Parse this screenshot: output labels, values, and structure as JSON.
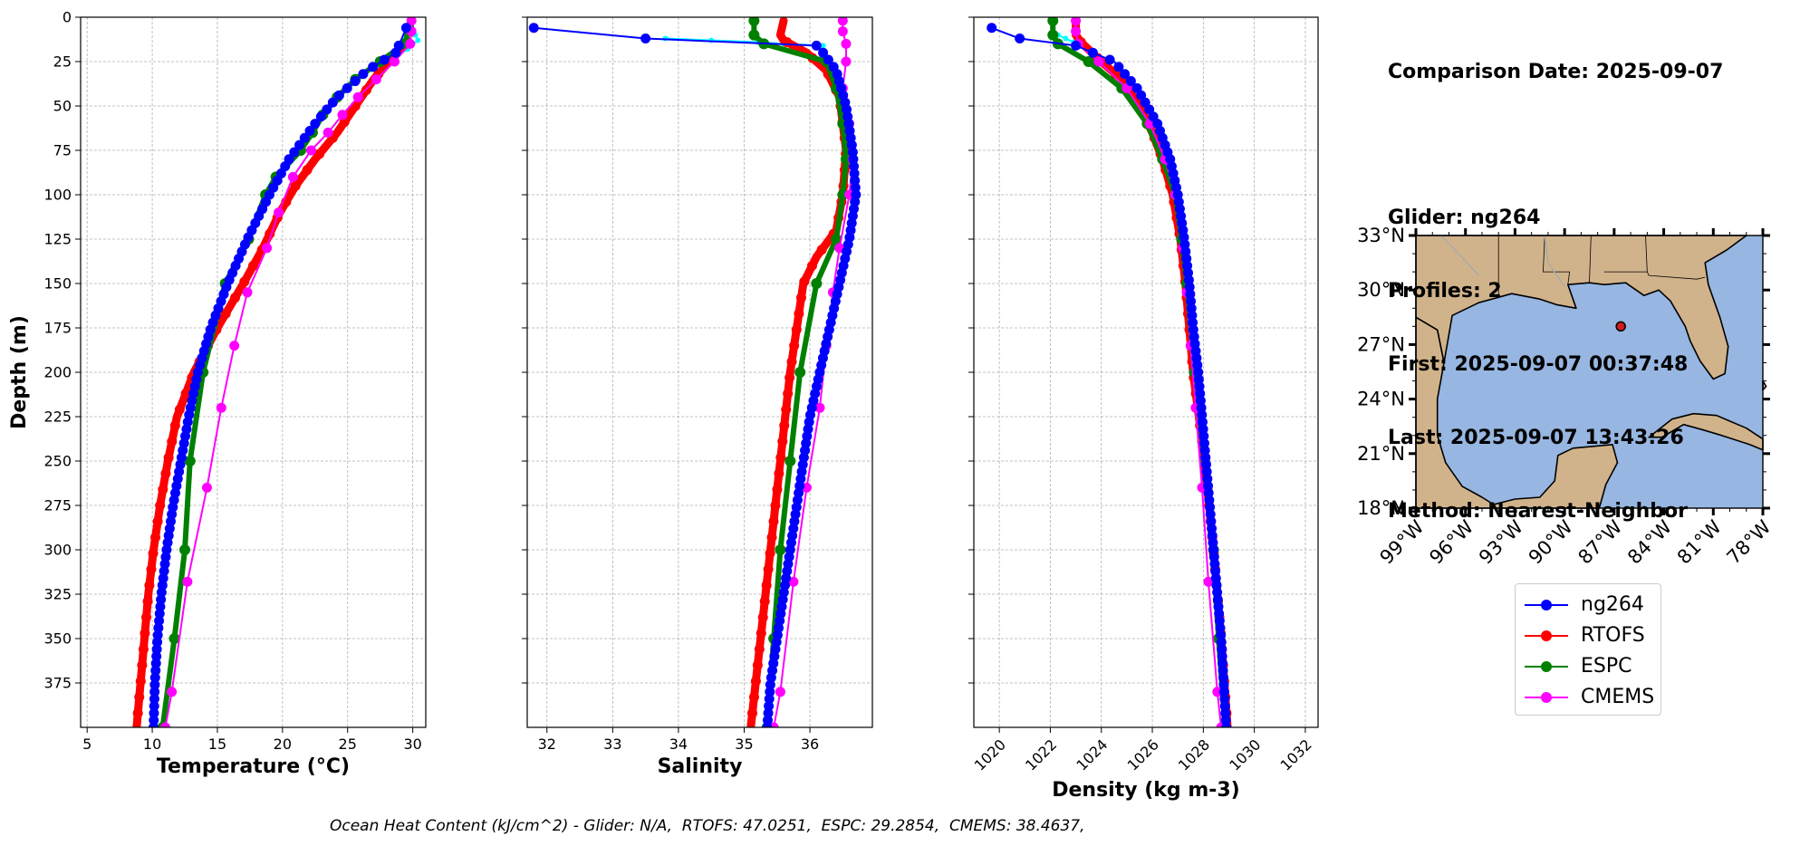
{
  "info": {
    "comparison_date": "Comparison Date: 2025-09-07",
    "glider": "Glider: ng264",
    "profiles": "Profiles: 2",
    "first": "First: 2025-09-07 00:37:48",
    "last": "Last: 2025-09-07 13:43:26",
    "method": "Method: Nearest-Neighbor"
  },
  "footer": "Ocean Heat Content (kJ/cm^2) - Glider: N/A,  RTOFS: 47.0251,  ESPC: 29.2854,  CMEMS: 38.4637,",
  "colors": {
    "ng264": "#0000ff",
    "ng264_raw": "#00ffff",
    "RTOFS": "#ff0000",
    "ESPC": "#008000",
    "CMEMS": "#ff00ff",
    "ocean": "#97b6e1",
    "land": "#d1b38b",
    "grid": "#b0b0b0",
    "marker": "#d01c1c"
  },
  "legend": [
    {
      "label": "ng264",
      "color": "#0000ff"
    },
    {
      "label": "RTOFS",
      "color": "#ff0000"
    },
    {
      "label": "ESPC",
      "color": "#008000"
    },
    {
      "label": "CMEMS",
      "color": "#ff00ff"
    }
  ],
  "map": {
    "lat_ticks": [
      "18°N",
      "21°N",
      "24°N",
      "27°N",
      "30°N",
      "33°N"
    ],
    "lon_ticks": [
      "99°W",
      "96°W",
      "93°W",
      "90°W",
      "87°W",
      "84°W",
      "81°W",
      "78°W"
    ],
    "lon_range": [
      -99,
      -78
    ],
    "lat_range": [
      18,
      33
    ],
    "glider_position": {
      "lon": -86.6,
      "lat": 28.0
    }
  },
  "chart_data": [
    {
      "type": "line",
      "xlabel": "Temperature (°C)",
      "ylabel": "Depth (m)",
      "xlim": [
        4.5,
        31
      ],
      "ylim": [
        400,
        0
      ],
      "xticks": [
        5,
        10,
        15,
        20,
        25,
        30
      ],
      "yticks": [
        0,
        25,
        50,
        75,
        100,
        125,
        150,
        175,
        200,
        225,
        250,
        275,
        300,
        325,
        350,
        375
      ],
      "grid": true,
      "series": [
        {
          "name": "ng264",
          "depth": [
            6,
            20,
            30,
            45,
            60,
            80,
            100,
            125,
            150,
            175,
            200,
            225,
            250,
            275,
            300,
            325,
            350,
            375,
            400
          ],
          "values": [
            29.5,
            28.7,
            26.5,
            24.2,
            22.5,
            20.5,
            19.0,
            17.3,
            15.8,
            14.5,
            13.5,
            12.8,
            12.2,
            11.6,
            11.1,
            10.7,
            10.4,
            10.2,
            10.1
          ]
        },
        {
          "name": "RTOFS",
          "depth": [
            14,
            25,
            35,
            50,
            65,
            80,
            95,
            110,
            130,
            150,
            175,
            200,
            225,
            250,
            275,
            300,
            325,
            350,
            375,
            400
          ],
          "values": [
            29.6,
            28.2,
            27.0,
            25.6,
            24.2,
            22.5,
            21.0,
            19.8,
            18.5,
            17.0,
            15.0,
            13.2,
            11.9,
            11.2,
            10.6,
            10.1,
            9.7,
            9.4,
            9.1,
            8.8
          ]
        },
        {
          "name": "ESPC",
          "depth": [
            6,
            15,
            25,
            35,
            45,
            55,
            65,
            75,
            90,
            100,
            125,
            150,
            200,
            250,
            300,
            350,
            400
          ],
          "values": [
            29.7,
            29.4,
            27.5,
            25.6,
            24.2,
            23.1,
            22.3,
            21.4,
            19.5,
            18.7,
            17.4,
            15.6,
            13.9,
            12.9,
            12.5,
            11.7,
            10.8
          ]
        },
        {
          "name": "CMEMS",
          "depth": [
            2,
            8,
            15,
            25,
            35,
            45,
            55,
            65,
            75,
            90,
            110,
            130,
            155,
            185,
            220,
            265,
            318,
            380,
            400
          ],
          "values": [
            29.9,
            29.9,
            29.8,
            28.6,
            27.2,
            25.8,
            24.6,
            23.5,
            22.2,
            20.8,
            19.7,
            18.8,
            17.3,
            16.3,
            15.3,
            14.2,
            12.7,
            11.5,
            11.0
          ]
        },
        {
          "name": "ng264_raw",
          "depth": [
            6,
            10,
            13,
            18,
            22,
            27
          ],
          "values": [
            29.8,
            30.2,
            30.4,
            29.6,
            28.7,
            27.3
          ]
        }
      ]
    },
    {
      "type": "line",
      "xlabel": "Salinity",
      "ylabel": "",
      "xlim": [
        31.7,
        36.95
      ],
      "ylim": [
        400,
        0
      ],
      "xticks": [
        32,
        33,
        34,
        35,
        36
      ],
      "yticks": [
        0,
        25,
        50,
        75,
        100,
        125,
        150,
        175,
        200,
        225,
        250,
        275,
        300,
        325,
        350,
        375
      ],
      "grid": true,
      "series": [
        {
          "name": "ng264",
          "depth": [
            6,
            12,
            16,
            20,
            30,
            50,
            75,
            100,
            125,
            150,
            175,
            200,
            225,
            250,
            275,
            300,
            325,
            350,
            375,
            400
          ],
          "values": [
            31.8,
            33.5,
            36.1,
            36.2,
            36.4,
            36.55,
            36.65,
            36.7,
            36.6,
            36.45,
            36.3,
            36.15,
            36.0,
            35.9,
            35.8,
            35.7,
            35.6,
            35.5,
            35.4,
            35.35
          ]
        },
        {
          "name": "RTOFS",
          "depth": [
            2,
            10,
            13,
            20,
            30,
            45,
            60,
            75,
            100,
            120,
            135,
            150,
            175,
            200,
            250,
            300,
            350,
            400
          ],
          "values": [
            35.6,
            35.55,
            35.6,
            35.95,
            36.25,
            36.45,
            36.5,
            36.55,
            36.5,
            36.4,
            36.1,
            35.9,
            35.8,
            35.7,
            35.55,
            35.4,
            35.25,
            35.1
          ]
        },
        {
          "name": "ESPC",
          "depth": [
            2,
            10,
            15,
            25,
            40,
            60,
            80,
            100,
            125,
            150,
            200,
            250,
            300,
            350,
            400
          ],
          "values": [
            35.15,
            35.15,
            35.3,
            36.25,
            36.4,
            36.5,
            36.55,
            36.5,
            36.4,
            36.1,
            35.85,
            35.7,
            35.55,
            35.45,
            35.35
          ]
        },
        {
          "name": "CMEMS",
          "depth": [
            2,
            8,
            15,
            25,
            40,
            60,
            80,
            100,
            130,
            155,
            185,
            220,
            265,
            318,
            380,
            400
          ],
          "values": [
            36.5,
            36.5,
            36.55,
            36.55,
            36.5,
            36.6,
            36.65,
            36.6,
            36.45,
            36.35,
            36.25,
            36.15,
            35.95,
            35.75,
            35.55,
            35.45
          ]
        },
        {
          "name": "ng264_raw",
          "depth": [
            12,
            13,
            14,
            15,
            16
          ],
          "values": [
            33.8,
            34.5,
            35.2,
            35.6,
            36.2
          ]
        }
      ]
    },
    {
      "type": "line",
      "xlabel": "Density (kg m-3)",
      "ylabel": "",
      "xlim": [
        1019.0,
        1032.5
      ],
      "ylim": [
        400,
        0
      ],
      "xticks": [
        1020,
        1022,
        1024,
        1026,
        1028,
        1030,
        1032
      ],
      "yticks": [
        0,
        25,
        50,
        75,
        100,
        125,
        150,
        175,
        200,
        225,
        250,
        275,
        300,
        325,
        350,
        375
      ],
      "grid": true,
      "series": [
        {
          "name": "ng264",
          "depth": [
            6,
            12,
            16,
            25,
            40,
            60,
            80,
            100,
            125,
            150,
            175,
            200,
            225,
            250,
            275,
            300,
            325,
            350,
            375,
            400
          ],
          "values": [
            1019.7,
            1020.8,
            1023.0,
            1024.5,
            1025.4,
            1026.2,
            1026.7,
            1027.0,
            1027.25,
            1027.45,
            1027.6,
            1027.8,
            1027.95,
            1028.1,
            1028.25,
            1028.4,
            1028.55,
            1028.7,
            1028.8,
            1028.9
          ]
        },
        {
          "name": "RTOFS",
          "depth": [
            2,
            10,
            14,
            25,
            35,
            50,
            65,
            80,
            100,
            125,
            150,
            200,
            250,
            300,
            350,
            400
          ],
          "values": [
            1023.0,
            1023.0,
            1023.2,
            1024.0,
            1024.8,
            1025.5,
            1026.0,
            1026.4,
            1026.8,
            1027.1,
            1027.3,
            1027.6,
            1028.05,
            1028.4,
            1028.7,
            1028.95
          ]
        },
        {
          "name": "ESPC",
          "depth": [
            2,
            10,
            15,
            25,
            40,
            60,
            80,
            100,
            125,
            150,
            200,
            250,
            300,
            350,
            400
          ],
          "values": [
            1022.1,
            1022.1,
            1022.3,
            1023.5,
            1024.8,
            1025.8,
            1026.4,
            1026.9,
            1027.15,
            1027.35,
            1027.65,
            1028.05,
            1028.4,
            1028.6,
            1028.85
          ]
        },
        {
          "name": "CMEMS",
          "depth": [
            2,
            8,
            15,
            25,
            40,
            60,
            80,
            100,
            130,
            155,
            185,
            220,
            265,
            318,
            380,
            400
          ],
          "values": [
            1023.0,
            1023.0,
            1023.1,
            1023.9,
            1025.0,
            1025.9,
            1026.5,
            1026.9,
            1027.2,
            1027.35,
            1027.5,
            1027.7,
            1027.95,
            1028.2,
            1028.55,
            1028.7
          ]
        },
        {
          "name": "ng264_raw",
          "depth": [
            10,
            12,
            14,
            16
          ],
          "values": [
            1022.3,
            1022.6,
            1022.9,
            1023.1
          ]
        }
      ]
    }
  ]
}
